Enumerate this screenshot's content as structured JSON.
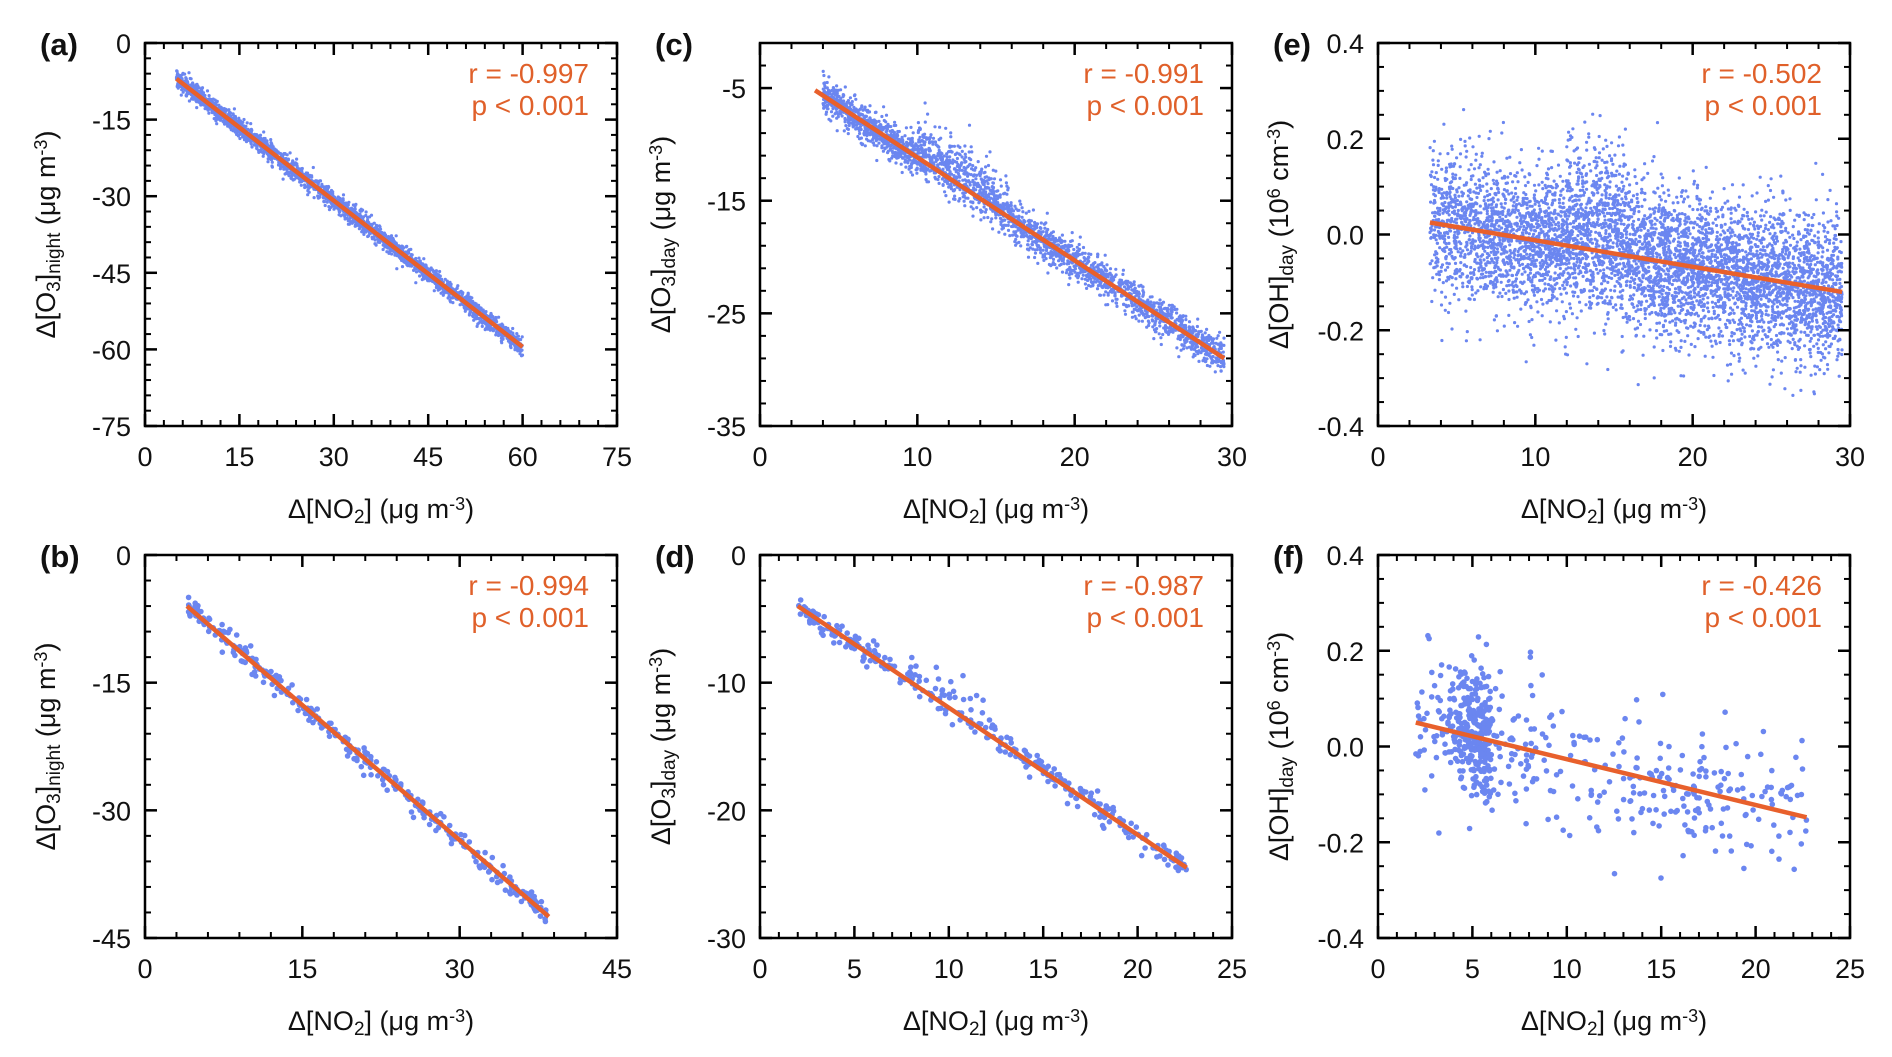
{
  "figure": {
    "point_color": "#6B86F0",
    "fit_color": "#E8602C",
    "annotation_color": "#E0602A"
  },
  "chart_data": [
    {
      "id": "a",
      "type": "scatter",
      "panel_label": "(a)",
      "xlim": [
        0,
        75
      ],
      "ylim": [
        -75,
        0
      ],
      "xticks": [
        0,
        15,
        30,
        45,
        60,
        75
      ],
      "yticks": [
        0,
        -15,
        -30,
        -45,
        -60,
        -75
      ],
      "xminor": 3,
      "yminor": 3,
      "xlabel": [
        {
          "t": "Δ[NO"
        },
        {
          "t": "2",
          "s": "sub"
        },
        {
          "t": "] (μg m"
        },
        {
          "t": "-3",
          "s": "sup"
        },
        {
          "t": ")"
        }
      ],
      "ylabel": [
        {
          "t": "Δ[O"
        },
        {
          "t": "3",
          "s": "sub"
        },
        {
          "t": "]"
        },
        {
          "t": "night",
          "s": "sub"
        },
        {
          "t": " (μg m"
        },
        {
          "t": "-3",
          "s": "sup"
        },
        {
          "t": ")"
        }
      ],
      "r": "r = -0.997",
      "p": "p < 0.001",
      "fit": {
        "x": [
          5,
          60
        ],
        "y": [
          -7,
          -59.5
        ]
      },
      "points": {
        "n": 2600,
        "x_range": [
          5,
          60
        ],
        "spread": 0.9,
        "dense": true
      }
    },
    {
      "id": "c",
      "type": "scatter",
      "panel_label": "(c)",
      "xlim": [
        0,
        30
      ],
      "ylim": [
        -35,
        -1
      ],
      "xticks": [
        0,
        10,
        20,
        30
      ],
      "yticks": [
        -5,
        -15,
        -25,
        -35
      ],
      "xminor": 2,
      "yminor": 2,
      "xlabel": [
        {
          "t": "Δ[NO"
        },
        {
          "t": "2",
          "s": "sub"
        },
        {
          "t": "] (μg m"
        },
        {
          "t": "-3",
          "s": "sup"
        },
        {
          "t": ")"
        }
      ],
      "ylabel": [
        {
          "t": "Δ[O"
        },
        {
          "t": "3",
          "s": "sub"
        },
        {
          "t": "]"
        },
        {
          "t": "day",
          "s": "sub"
        },
        {
          "t": " (μg m"
        },
        {
          "t": "-3",
          "s": "sup"
        },
        {
          "t": ")"
        }
      ],
      "r": "r = -0.991",
      "p": "p < 0.001",
      "fit": {
        "x": [
          3.5,
          29.5
        ],
        "y": [
          -5.2,
          -29
        ]
      },
      "points": {
        "n": 2600,
        "x_range": [
          4,
          29.5
        ],
        "spread": 0.8,
        "bump": [
          10,
          16,
          1.6
        ],
        "dense": true
      }
    },
    {
      "id": "e",
      "type": "scatter",
      "panel_label": "(e)",
      "xlim": [
        0,
        30
      ],
      "ylim": [
        -0.4,
        0.4
      ],
      "xticks": [
        0,
        10,
        20,
        30
      ],
      "yticks": [
        0.4,
        0.2,
        0.0,
        -0.2,
        -0.4
      ],
      "ytick_labels": [
        "0.4",
        "0.2",
        "0.0",
        "-0.2",
        "-0.4"
      ],
      "xminor": 2,
      "yminor": 0.05,
      "xlabel": [
        {
          "t": "Δ[NO"
        },
        {
          "t": "2",
          "s": "sub"
        },
        {
          "t": "] (μg m"
        },
        {
          "t": "-3",
          "s": "sup"
        },
        {
          "t": ")"
        }
      ],
      "ylabel": [
        {
          "t": "Δ[OH]"
        },
        {
          "t": "day",
          "s": "sub"
        },
        {
          "t": " (10"
        },
        {
          "t": "6",
          "s": "sup"
        },
        {
          "t": " cm"
        },
        {
          "t": "-3",
          "s": "sup"
        },
        {
          "t": ")"
        }
      ],
      "r": "r = -0.502",
      "p": "p < 0.001",
      "fit": {
        "x": [
          3.3,
          29.5
        ],
        "y": [
          0.025,
          -0.12
        ]
      },
      "points": {
        "n": 5500,
        "x_range": [
          3.3,
          29.5
        ],
        "spread": 0.075,
        "bump": [
          12,
          16,
          0.08
        ],
        "dense": true
      }
    },
    {
      "id": "b",
      "type": "scatter",
      "panel_label": "(b)",
      "xlim": [
        0,
        45
      ],
      "ylim": [
        -45,
        0
      ],
      "xticks": [
        0,
        15,
        30,
        45
      ],
      "yticks": [
        0,
        -15,
        -30,
        -45
      ],
      "xminor": 3,
      "yminor": 3,
      "xlabel": [
        {
          "t": "Δ[NO"
        },
        {
          "t": "2",
          "s": "sub"
        },
        {
          "t": "] (μg m"
        },
        {
          "t": "-3",
          "s": "sup"
        },
        {
          "t": ")"
        }
      ],
      "ylabel": [
        {
          "t": "Δ[O"
        },
        {
          "t": "3",
          "s": "sub"
        },
        {
          "t": "]"
        },
        {
          "t": "night",
          "s": "sub"
        },
        {
          "t": " (μg m"
        },
        {
          "t": "-3",
          "s": "sup"
        },
        {
          "t": ")"
        }
      ],
      "r": "r = -0.994",
      "p": "p < 0.001",
      "fit": {
        "x": [
          4,
          38.5
        ],
        "y": [
          -6,
          -42.5
        ]
      },
      "points": {
        "n": 320,
        "x_range": [
          4,
          38.5
        ],
        "spread": 0.7,
        "dense": false
      }
    },
    {
      "id": "d",
      "type": "scatter",
      "panel_label": "(d)",
      "xlim": [
        0,
        25
      ],
      "ylim": [
        -30,
        0
      ],
      "xticks": [
        0,
        5,
        10,
        15,
        20,
        25
      ],
      "yticks": [
        0,
        -10,
        -20,
        -30
      ],
      "xminor": 1,
      "yminor": 2,
      "xlabel": [
        {
          "t": "Δ[NO"
        },
        {
          "t": "2",
          "s": "sub"
        },
        {
          "t": "] (μg m"
        },
        {
          "t": "-3",
          "s": "sup"
        },
        {
          "t": ")"
        }
      ],
      "ylabel": [
        {
          "t": "Δ[O"
        },
        {
          "t": "3",
          "s": "sub"
        },
        {
          "t": "]"
        },
        {
          "t": "day",
          "s": "sub"
        },
        {
          "t": " (μg m"
        },
        {
          "t": "-3",
          "s": "sup"
        },
        {
          "t": ")"
        }
      ],
      "r": "r = -0.987",
      "p": "p < 0.001",
      "fit": {
        "x": [
          2,
          22.6
        ],
        "y": [
          -4,
          -24.5
        ]
      },
      "points": {
        "n": 320,
        "x_range": [
          2,
          22.6
        ],
        "spread": 0.5,
        "bump": [
          8,
          12,
          1.0
        ],
        "dense": false
      }
    },
    {
      "id": "f",
      "type": "scatter",
      "panel_label": "(f)",
      "xlim": [
        0,
        25
      ],
      "ylim": [
        -0.4,
        0.4
      ],
      "xticks": [
        0,
        5,
        10,
        15,
        20,
        25
      ],
      "yticks": [
        0.4,
        0.2,
        0.0,
        -0.2,
        -0.4
      ],
      "ytick_labels": [
        "0.4",
        "0.2",
        "0.0",
        "-0.2",
        "-0.4"
      ],
      "xminor": 1,
      "yminor": 0.05,
      "xlabel": [
        {
          "t": "Δ[NO"
        },
        {
          "t": "2",
          "s": "sub"
        },
        {
          "t": "] (μg m"
        },
        {
          "t": "-3",
          "s": "sup"
        },
        {
          "t": ")"
        }
      ],
      "ylabel": [
        {
          "t": "Δ[OH]"
        },
        {
          "t": "day",
          "s": "sub"
        },
        {
          "t": " (10"
        },
        {
          "t": "6",
          "s": "sup"
        },
        {
          "t": " cm"
        },
        {
          "t": "-3",
          "s": "sup"
        },
        {
          "t": ")"
        }
      ],
      "r": "r = -0.426",
      "p": "p < 0.001",
      "fit": {
        "x": [
          2,
          22.7
        ],
        "y": [
          0.05,
          -0.148
        ]
      },
      "points": {
        "n": 600,
        "x_range": [
          2,
          22.7
        ],
        "spread": 0.07,
        "cluster": [
          5.2,
          0.6
        ],
        "dense": false
      }
    }
  ]
}
